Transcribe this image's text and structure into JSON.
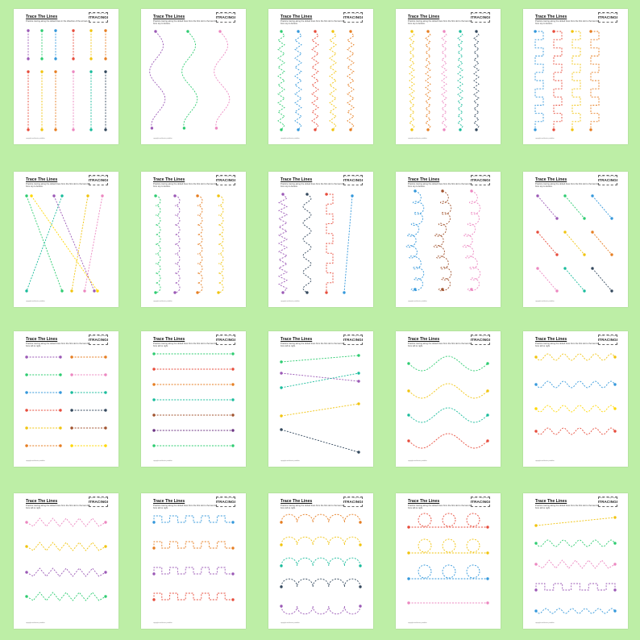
{
  "sheet_title": "Trace The Lines",
  "logo": {
    "small": "Practice · Tracing · Lines",
    "big": "TRACING"
  },
  "footer": "copyright worksheets printables",
  "colors": [
    "#9b59b6",
    "#2ecc71",
    "#3498db",
    "#e74c3c",
    "#f1c40f",
    "#e67e22",
    "#ec87c0",
    "#1abc9c",
    "#34495e",
    "#a0522d",
    "#ffd700",
    "#6c3483"
  ],
  "sheets": [
    {
      "id": "vertical-lines",
      "instruction": "Practice tracing along the dotted lines in the direction of the arrows."
    },
    {
      "id": "vertical-waves",
      "instruction": "Practice tracing along the dotted lines from the first dot to the last dot from top to bottom."
    },
    {
      "id": "vertical-zigzags",
      "instruction": "Practice tracing along the dotted lines from the first dot to the last dot from top to bottom."
    },
    {
      "id": "vertical-zigzags-fine",
      "instruction": "Practice tracing along the dotted lines from the first dot to the last dot from top to bottom."
    },
    {
      "id": "vertical-squares",
      "instruction": "Practice tracing along the dotted lines from the first dot to the last dot from top to bottom."
    },
    {
      "id": "crossing-diagonals",
      "instruction": "Practice tracing along the dotted lines from the first dot to the last dot from top to bottom."
    },
    {
      "id": "vertical-scallops",
      "instruction": "Practice tracing along the dotted lines from the first dot to the last dot from top to bottom."
    },
    {
      "id": "mixed-vertical",
      "instruction": "Practice tracing along the dotted lines from the first dot to the last dot from top to bottom."
    },
    {
      "id": "vertical-loops",
      "instruction": "Practice tracing along the dotted lines from the first dot to the last dot from top to bottom."
    },
    {
      "id": "short-diagonals",
      "instruction": "Practice tracing along the dotted lines from the first dot to the last dot from top to bottom."
    },
    {
      "id": "short-horizontals",
      "instruction": "Practice tracing along the dotted lines from the first dot to the last dot from left to right."
    },
    {
      "id": "long-horizontals",
      "instruction": "Practice tracing along the dotted lines from the first dot to the last dot from left to right."
    },
    {
      "id": "slanted-lines",
      "instruction": "Practice tracing along the dotted lines from the first dot to the last dot from left to right."
    },
    {
      "id": "horizontal-waves",
      "instruction": "Practice tracing along the dotted lines from the first dot to the last dot from left to right."
    },
    {
      "id": "horizontal-small-waves",
      "instruction": "Practice tracing along the dotted lines from the first dot to the last dot from left to right."
    },
    {
      "id": "horizontal-zigzags",
      "instruction": "Practice tracing along the dotted lines from the first dot to the last dot from left to right."
    },
    {
      "id": "horizontal-squares",
      "instruction": "Practice tracing along the dotted lines from the first dot to the last dot from left to right."
    },
    {
      "id": "horizontal-arches",
      "instruction": "Practice tracing along the dotted lines from the first dot to the last dot from left to right."
    },
    {
      "id": "horizontal-circles",
      "instruction": "Practice tracing along the dotted lines from the first dot to the last dot from left to right."
    },
    {
      "id": "mixed-horizontal",
      "instruction": "Practice tracing along the dotted lines from the first dot to the last dot from left to right."
    }
  ]
}
